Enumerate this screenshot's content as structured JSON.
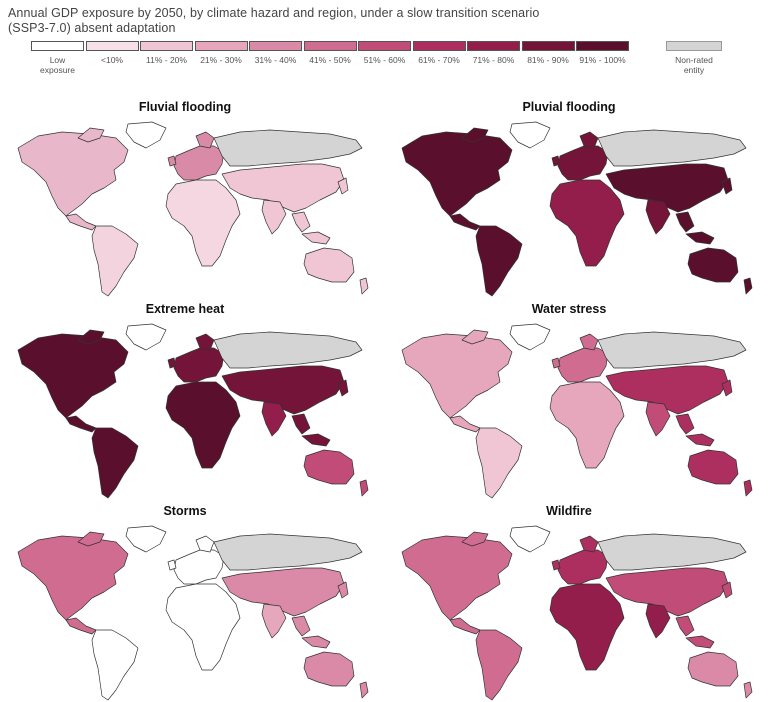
{
  "subtitle_line1": "Annual GDP exposure by 2050, by climate hazard and region, under a slow transition scenario",
  "subtitle_line2": "(SSP3-7.0) absent adaptation",
  "legend": [
    {
      "label": "Low\nexposure",
      "color": "#ffffff"
    },
    {
      "label": "<10%",
      "color": "#f7e1e8"
    },
    {
      "label": "11% - 20%",
      "color": "#f0c6d4"
    },
    {
      "label": "21% - 30%",
      "color": "#e6a7bd"
    },
    {
      "label": "31% - 40%",
      "color": "#da89a6"
    },
    {
      "label": "41% - 50%",
      "color": "#cf6c90"
    },
    {
      "label": "51% - 60%",
      "color": "#c14c77"
    },
    {
      "label": "61% - 70%",
      "color": "#ad2f5f"
    },
    {
      "label": "71% - 80%",
      "color": "#931d4b"
    },
    {
      "label": "81% - 90%",
      "color": "#741438"
    },
    {
      "label": "91% - 100%",
      "color": "#5a0f2c"
    }
  ],
  "legend_nonrated": {
    "label": "Non-rated\nentity",
    "color": "#d4d4d4"
  },
  "panels": [
    {
      "title": "Fluvial flooding",
      "na": "#e8b7c9",
      "sa": "#f3d3de",
      "eu": "#d98aa6",
      "af": "#f4d7e0",
      "ru": "#d4d4d4",
      "asia": "#f0c6d4",
      "india": "#f0c6d4",
      "au": "#f0c6d4",
      "greenland": "#ffffff"
    },
    {
      "title": "Pluvial flooding",
      "na": "#5a0f2c",
      "sa": "#5a0f2c",
      "eu": "#741438",
      "af": "#931d4b",
      "ru": "#d4d4d4",
      "asia": "#5a0f2c",
      "india": "#741438",
      "au": "#5a0f2c",
      "greenland": "#ffffff"
    },
    {
      "title": "Extreme heat",
      "na": "#5a0f2c",
      "sa": "#5a0f2c",
      "eu": "#741438",
      "af": "#5a0f2c",
      "ru": "#d4d4d4",
      "asia": "#741438",
      "india": "#931d4b",
      "au": "#c14c77",
      "greenland": "#ffffff"
    },
    {
      "title": "Water stress",
      "na": "#e6a7bd",
      "sa": "#f0c6d4",
      "eu": "#cf6c90",
      "af": "#e6a7bd",
      "ru": "#d4d4d4",
      "asia": "#ad2f5f",
      "india": "#c14c77",
      "au": "#ad2f5f",
      "greenland": "#ffffff"
    },
    {
      "title": "Storms",
      "na": "#cf6c90",
      "sa": "#ffffff",
      "eu": "#ffffff",
      "af": "#ffffff",
      "ru": "#d4d4d4",
      "asia": "#da89a6",
      "india": "#e6a7bd",
      "au": "#da89a6",
      "greenland": "#ffffff"
    },
    {
      "title": "Wildfire",
      "na": "#cf6c90",
      "sa": "#cf6c90",
      "eu": "#ad2f5f",
      "af": "#931d4b",
      "ru": "#d4d4d4",
      "asia": "#c14c77",
      "india": "#931d4b",
      "au": "#da89a6",
      "greenland": "#ffffff"
    }
  ]
}
